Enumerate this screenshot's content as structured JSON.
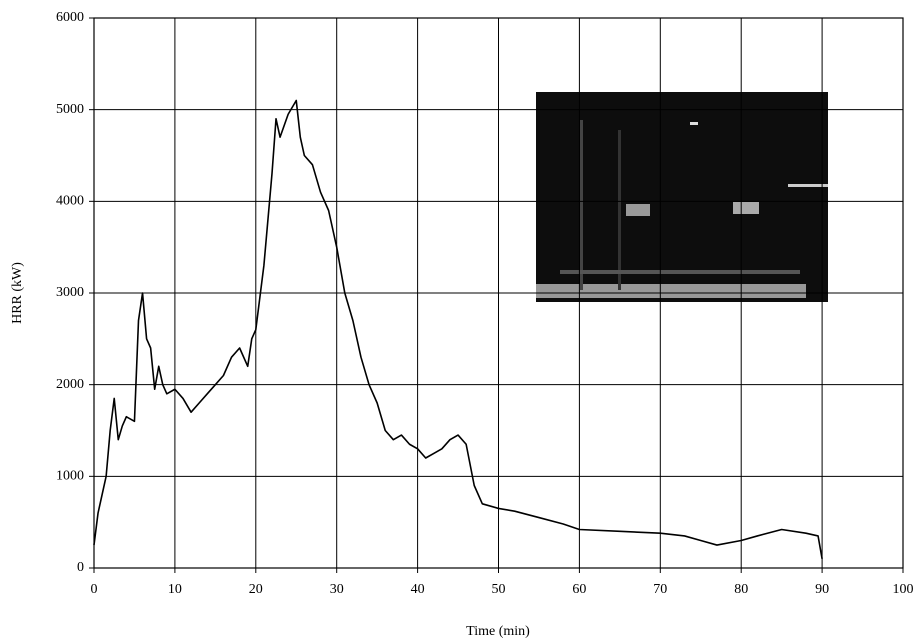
{
  "chart_data": {
    "type": "line",
    "xlabel": "Time (min)",
    "ylabel": "HRR (kW)",
    "x": [
      0,
      0.5,
      1,
      1.5,
      2,
      2.5,
      3,
      3.5,
      4,
      5,
      5.5,
      6,
      6.5,
      7,
      7.5,
      8,
      8.5,
      9,
      10,
      11,
      12,
      13,
      14,
      15,
      16,
      17,
      18,
      19,
      19.5,
      20,
      21,
      22,
      22.5,
      23,
      24,
      25,
      25.5,
      26,
      27,
      28,
      29,
      30,
      31,
      32,
      33,
      34,
      35,
      36,
      37,
      38,
      39,
      40,
      41,
      42,
      43,
      44,
      45,
      46,
      47,
      48,
      50,
      52,
      55,
      58,
      60,
      65,
      70,
      73,
      75,
      77,
      80,
      82,
      85,
      88,
      89.5,
      90
    ],
    "values": [
      250,
      600,
      800,
      1000,
      1500,
      1850,
      1400,
      1550,
      1650,
      1600,
      2700,
      3000,
      2500,
      2400,
      1950,
      2200,
      2000,
      1900,
      1950,
      1850,
      1700,
      1800,
      1900,
      2000,
      2100,
      2300,
      2400,
      2200,
      2500,
      2600,
      3300,
      4300,
      4900,
      4700,
      4950,
      5100,
      4700,
      4500,
      4400,
      4100,
      3900,
      3500,
      3000,
      2700,
      2300,
      2000,
      1800,
      1500,
      1400,
      1450,
      1350,
      1300,
      1200,
      1250,
      1300,
      1400,
      1450,
      1350,
      900,
      700,
      650,
      620,
      550,
      480,
      420,
      400,
      380,
      350,
      300,
      250,
      300,
      350,
      420,
      380,
      350,
      100
    ],
    "color": "#000000",
    "xlim": [
      0,
      100
    ],
    "xticks": [
      0,
      10,
      20,
      30,
      40,
      50,
      60,
      70,
      80,
      90,
      100
    ],
    "ylim": [
      0,
      6000
    ],
    "yticks": [
      0,
      1000,
      2000,
      3000,
      4000,
      5000,
      6000
    ],
    "grid": true
  }
}
